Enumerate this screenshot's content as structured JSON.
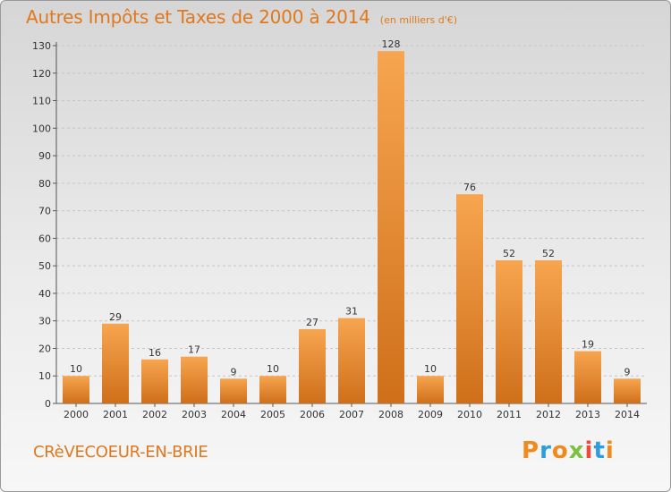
{
  "chart_data": {
    "type": "bar",
    "title": "Autres Impôts et Taxes de 2000 à 2014",
    "subtitle": "(en milliers d'€)",
    "categories": [
      "2000",
      "2001",
      "2002",
      "2003",
      "2004",
      "2005",
      "2006",
      "2007",
      "2008",
      "2009",
      "2010",
      "2011",
      "2012",
      "2013",
      "2014"
    ],
    "values": [
      10,
      29,
      16,
      17,
      9,
      10,
      27,
      31,
      128,
      10,
      76,
      52,
      52,
      19,
      9
    ],
    "ylim": [
      0,
      130
    ],
    "yticks": [
      0,
      10,
      20,
      30,
      40,
      50,
      60,
      70,
      80,
      90,
      100,
      110,
      120,
      130
    ],
    "xlabel": "",
    "ylabel": "",
    "grid": true,
    "bar_color": "#f0963c",
    "bar_color_dark": "#d4741e"
  },
  "footer": {
    "commune": "CRèVECOEUR-EN-BRIE",
    "logo_text": "Proxiti",
    "logo_colors": [
      "#f08a1e",
      "#2f9be0",
      "#f08a1e",
      "#7cc242",
      "#e94b3c",
      "#2f9be0",
      "#f08a1e"
    ]
  }
}
